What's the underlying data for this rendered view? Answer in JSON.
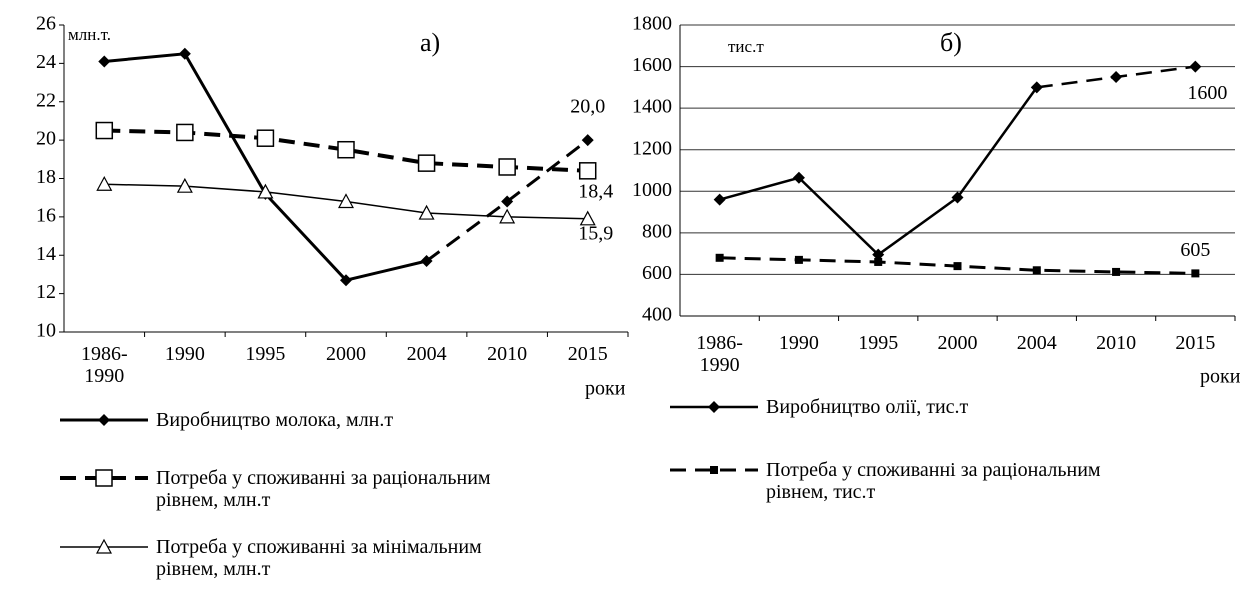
{
  "chart_data": [
    {
      "type": "line",
      "y_axis_label": "млн.т.",
      "annotation": "а)",
      "x_axis_label": "роки",
      "categories": [
        "1986-\n1990",
        "1990",
        "1995",
        "2000",
        "2004",
        "2010",
        "2015"
      ],
      "ylim": [
        10,
        26
      ],
      "yticks": [
        10,
        12,
        14,
        16,
        18,
        20,
        22,
        24,
        26
      ],
      "grid": false,
      "legend": "bottom",
      "series": [
        {
          "name": "Виробництво молока, млн.т",
          "color": "#000000",
          "marker": "diamond",
          "dash": false,
          "dashed_from": 4,
          "line_width": 3,
          "values": [
            24.1,
            24.5,
            17.2,
            12.7,
            13.7,
            16.8,
            20.0
          ],
          "value_labels": [
            null,
            null,
            null,
            null,
            null,
            null,
            "20,0"
          ]
        },
        {
          "name": "Потреба у споживанні за раціональним рівнем, млн.т",
          "color": "#000000",
          "marker": "square",
          "dash": true,
          "line_width": 4,
          "values": [
            20.5,
            20.4,
            20.1,
            19.5,
            18.8,
            18.6,
            18.4
          ],
          "value_labels": [
            null,
            null,
            null,
            null,
            null,
            null,
            "18,4"
          ]
        },
        {
          "name": "Потреба у споживанні за мінімальним рівнем, млн.т",
          "color": "#000000",
          "marker": "triangle",
          "dash": false,
          "line_width": 1.5,
          "values": [
            17.7,
            17.6,
            17.3,
            16.8,
            16.2,
            16.0,
            15.9
          ],
          "value_labels": [
            null,
            null,
            null,
            null,
            null,
            null,
            "15,9"
          ]
        }
      ]
    },
    {
      "type": "line",
      "y_axis_label": "тис.т",
      "annotation": "б)",
      "x_axis_label": "роки",
      "categories": [
        "1986-\n1990",
        "1990",
        "1995",
        "2000",
        "2004",
        "2010",
        "2015"
      ],
      "ylim": [
        400,
        1800
      ],
      "yticks": [
        400,
        600,
        800,
        1000,
        1200,
        1400,
        1600,
        1800
      ],
      "grid": true,
      "legend": "bottom",
      "series": [
        {
          "name": "Виробництво олії, тис.т",
          "color": "#000000",
          "marker": "diamond",
          "dash": false,
          "dashed_from": 4,
          "line_width": 2.5,
          "values": [
            960,
            1065,
            695,
            970,
            1500,
            1550,
            1600
          ]
        },
        {
          "name": "Потреба у споживанні за раціональним рівнем, тис.т",
          "color": "#000000",
          "marker": "smallsquare",
          "dash": true,
          "line_width": 3,
          "values": [
            680,
            670,
            660,
            640,
            620,
            612,
            605
          ]
        }
      ]
    }
  ]
}
